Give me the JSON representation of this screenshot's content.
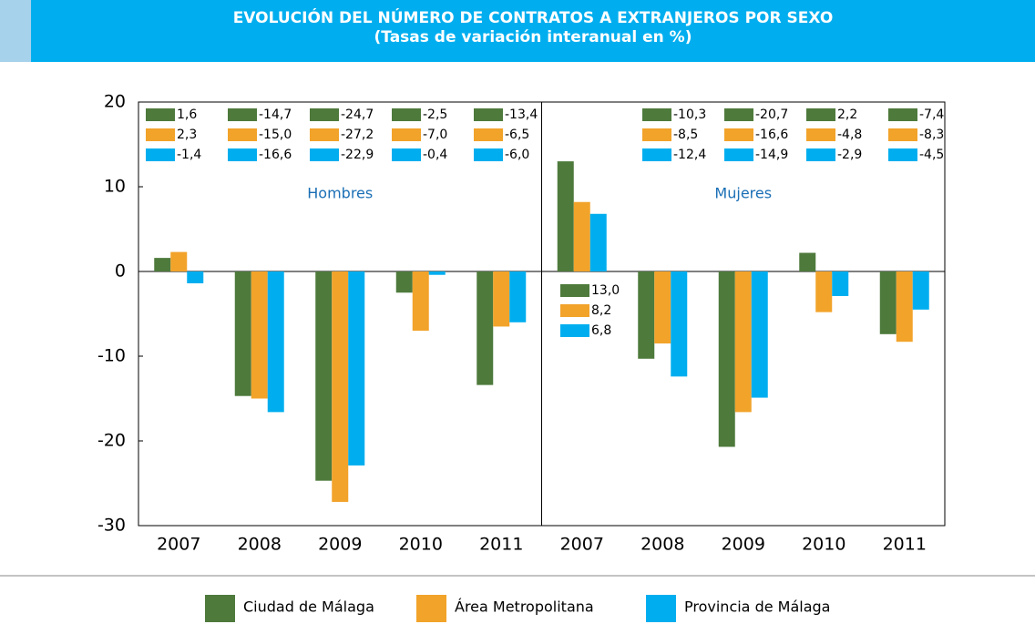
{
  "chart_data": {
    "type": "bar",
    "title": "EVOLUCIÓN DEL NÚMERO DE CONTRATOS A EXTRANJEROS POR SEXO",
    "subtitle": "(Tasas de variación interanual en %)",
    "panel_labels": [
      "Hombres",
      "Mujeres"
    ],
    "categories": [
      "2007",
      "2008",
      "2009",
      "2010",
      "2011",
      "2007",
      "2008",
      "2009",
      "2010",
      "2011"
    ],
    "series": [
      {
        "name": "Ciudad de Málaga",
        "color": "#4e7a3c",
        "values": [
          1.6,
          -14.7,
          -24.7,
          -2.5,
          -13.4,
          13.0,
          -10.3,
          -20.7,
          2.2,
          -7.4
        ],
        "value_labels": [
          "1,6",
          "-14,7",
          "-24,7",
          "-2,5",
          "-13,4",
          "13,0",
          "-10,3",
          "-20,7",
          "2,2",
          "-7,4"
        ]
      },
      {
        "name": "Área Metropolitana",
        "color": "#f2a32a",
        "values": [
          2.3,
          -15.0,
          -27.2,
          -7.0,
          -6.5,
          8.2,
          -8.5,
          -16.6,
          -4.8,
          -8.3
        ],
        "value_labels": [
          "2,3",
          "-15,0",
          "-27,2",
          "-7,0",
          "-6,5",
          "8,2",
          "-8,5",
          "-16,6",
          "-4,8",
          "-8,3"
        ]
      },
      {
        "name": "Provincia de Málaga",
        "color": "#00aeef",
        "values": [
          -1.4,
          -16.6,
          -22.9,
          -0.4,
          -6.0,
          6.8,
          -12.4,
          -14.9,
          -2.9,
          -4.5
        ],
        "value_labels": [
          "-1,4",
          "-16,6",
          "-22,9",
          "-0,4",
          "-6,0",
          "6,8",
          "-12,4",
          "-14,9",
          "-2,9",
          "-4,5"
        ]
      }
    ],
    "ylim": [
      -30,
      20
    ],
    "yticks": [
      20,
      10,
      0,
      -10,
      -20,
      -30
    ],
    "grid": false
  }
}
